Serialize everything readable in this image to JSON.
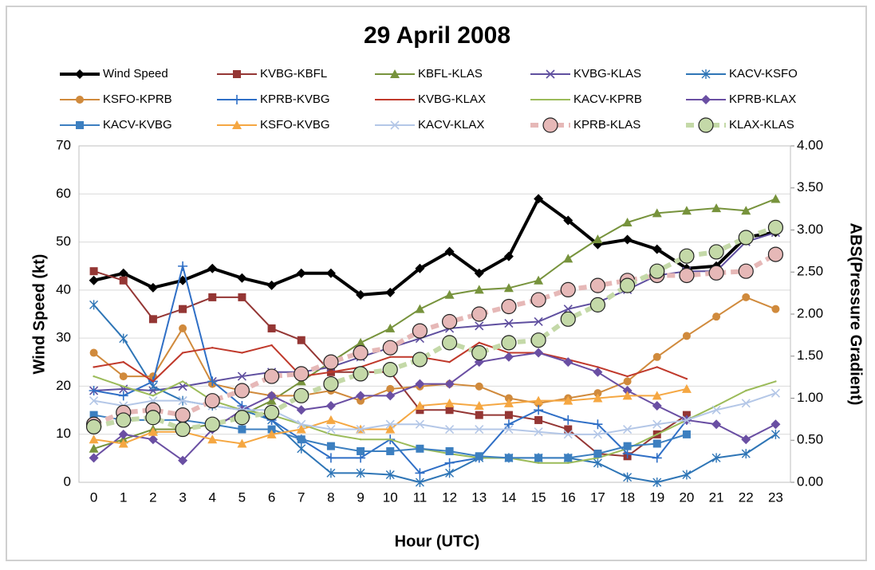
{
  "chart_data": {
    "type": "line",
    "title": "29 April 2008",
    "x_label": "Hour (UTC)",
    "y_label": "Wind Speed (kt)",
    "y2_label": "ABS(Pressure Gradient)",
    "categories": [
      "0",
      "1",
      "2",
      "3",
      "4",
      "5",
      "6",
      "7",
      "8",
      "9",
      "10",
      "11",
      "12",
      "13",
      "14",
      "15",
      "16",
      "17",
      "18",
      "19",
      "20",
      "21",
      "22",
      "23"
    ],
    "ylim": [
      0,
      70
    ],
    "yticks": [
      0,
      10,
      20,
      30,
      40,
      50,
      60,
      70
    ],
    "y2lim": [
      0,
      4
    ],
    "y2ticks": [
      {
        "value": 0,
        "label": "0.00"
      },
      {
        "value": 0.5,
        "label": "0.50"
      },
      {
        "value": 1,
        "label": "1.00"
      },
      {
        "value": 1.5,
        "label": "1.50"
      },
      {
        "value": 2,
        "label": "2.00"
      },
      {
        "value": 2.5,
        "label": "2.50"
      },
      {
        "value": 3,
        "label": "3.00"
      },
      {
        "value": 3.5,
        "label": "3.50"
      },
      {
        "value": 4,
        "label": "4.00"
      }
    ],
    "grid": true,
    "series": [
      {
        "name": "Wind Speed",
        "color": "#000000",
        "marker": "diamond",
        "width": 4,
        "axis": "y",
        "values": [
          42,
          43.5,
          40.5,
          42,
          44.5,
          42.5,
          41,
          43.5,
          43.5,
          39,
          39.5,
          44.5,
          48,
          43.5,
          47,
          59,
          54.5,
          49.5,
          50.5,
          48.5,
          44.5,
          45,
          51,
          52
        ]
      },
      {
        "name": "KVBG-KBFL",
        "color": "#943634",
        "marker": "square",
        "width": 2,
        "axis": "y2",
        "values": [
          2.51,
          2.4,
          1.94,
          2.06,
          2.2,
          2.2,
          1.83,
          1.69,
          1.31,
          1.31,
          1.31,
          0.86,
          0.86,
          0.8,
          0.8,
          0.74,
          0.63,
          0.34,
          0.31,
          0.57,
          0.8,
          null,
          null,
          null
        ]
      },
      {
        "name": "KBFL-KLAS",
        "color": "#77933c",
        "marker": "triangle",
        "width": 2,
        "axis": "y2",
        "values": [
          0.4,
          0.51,
          0.63,
          0.63,
          0.69,
          0.8,
          0.97,
          1.2,
          1.43,
          1.66,
          1.83,
          2.06,
          2.23,
          2.29,
          2.31,
          2.4,
          2.66,
          2.89,
          3.09,
          3.2,
          3.23,
          3.26,
          3.23,
          3.37
        ]
      },
      {
        "name": "KVBG-KLAS",
        "color": "#5f4f9f",
        "marker": "x",
        "width": 2,
        "axis": "y2",
        "values": [
          1.09,
          1.11,
          1.09,
          1.14,
          1.2,
          1.26,
          1.31,
          1.31,
          1.37,
          1.49,
          1.6,
          1.71,
          1.83,
          1.86,
          1.89,
          1.91,
          2.06,
          2.14,
          2.29,
          2.46,
          2.51,
          2.51,
          2.86,
          2.97
        ]
      },
      {
        "name": "KACV-KSFO",
        "color": "#2e75b6",
        "marker": "asterisk",
        "width": 2,
        "axis": "y2",
        "values": [
          2.11,
          1.71,
          1.14,
          0.97,
          0.91,
          0.86,
          0.74,
          0.4,
          0.11,
          0.11,
          0.09,
          0.0,
          0.11,
          0.29,
          0.29,
          0.29,
          0.29,
          0.23,
          0.06,
          0.0,
          0.09,
          0.29,
          0.34,
          0.57
        ]
      },
      {
        "name": "KSFO-KPRB",
        "color": "#d08a3c",
        "marker": "circle",
        "width": 2,
        "axis": "y2",
        "values": [
          1.54,
          1.26,
          1.26,
          1.83,
          1.17,
          1.09,
          1.03,
          1.03,
          1.09,
          0.97,
          1.11,
          1.14,
          1.17,
          1.14,
          1.0,
          0.94,
          1.0,
          1.06,
          1.2,
          1.49,
          1.74,
          1.97,
          2.2,
          2.06
        ]
      },
      {
        "name": "KPRB-KVBG",
        "color": "#2f6fc6",
        "marker": "plus",
        "width": 2,
        "axis": "y2",
        "values": [
          1.09,
          1.03,
          1.2,
          2.57,
          1.2,
          0.91,
          0.74,
          0.51,
          0.29,
          0.29,
          0.51,
          0.11,
          0.23,
          0.29,
          0.69,
          0.86,
          0.74,
          0.69,
          0.34,
          0.29,
          0.74,
          null,
          null,
          null
        ]
      },
      {
        "name": "KVBG-KLAX",
        "color": "#c0392b",
        "marker": "none",
        "width": 2,
        "axis": "y2",
        "values": [
          1.37,
          1.43,
          1.2,
          1.54,
          1.6,
          1.54,
          1.63,
          1.26,
          1.31,
          1.37,
          1.49,
          1.49,
          1.43,
          1.66,
          1.54,
          1.54,
          1.46,
          1.37,
          1.26,
          1.37,
          1.23,
          null,
          null,
          null
        ]
      },
      {
        "name": "KACV-KPRB",
        "color": "#9bbb59",
        "marker": "none",
        "width": 2,
        "axis": "y2",
        "values": [
          1.26,
          1.14,
          1.03,
          1.2,
          0.97,
          0.86,
          0.8,
          0.69,
          0.57,
          0.51,
          0.51,
          0.4,
          0.34,
          0.29,
          0.29,
          0.23,
          0.23,
          0.29,
          0.4,
          0.57,
          0.74,
          0.91,
          1.09,
          1.2
        ]
      },
      {
        "name": "KPRB-KLAX",
        "color": "#6a4fa3",
        "marker": "diamond",
        "width": 2,
        "axis": "y2",
        "values": [
          0.29,
          0.57,
          0.51,
          0.26,
          0.63,
          0.86,
          1.03,
          0.86,
          0.91,
          1.03,
          1.03,
          1.17,
          1.17,
          1.43,
          1.49,
          1.54,
          1.43,
          1.31,
          1.09,
          0.91,
          0.74,
          0.69,
          0.51,
          0.69
        ]
      },
      {
        "name": "KACV-KVBG",
        "color": "#3c7fc0",
        "marker": "square",
        "width": 2,
        "axis": "y2",
        "values": [
          0.8,
          0.74,
          0.74,
          0.74,
          0.69,
          0.63,
          0.63,
          0.51,
          0.43,
          0.37,
          0.37,
          0.4,
          0.37,
          0.31,
          0.29,
          0.29,
          0.29,
          0.34,
          0.43,
          0.46,
          0.57,
          null,
          null,
          null
        ]
      },
      {
        "name": "KSFO-KVBG",
        "color": "#f5a742",
        "marker": "triangle",
        "width": 2,
        "axis": "y2",
        "values": [
          0.51,
          0.46,
          0.6,
          0.6,
          0.51,
          0.46,
          0.57,
          0.63,
          0.74,
          0.63,
          0.63,
          0.91,
          0.94,
          0.91,
          0.94,
          0.97,
          0.97,
          1.0,
          1.03,
          1.03,
          1.11,
          null,
          null,
          null
        ]
      },
      {
        "name": "KACV-KLAX",
        "color": "#b4c7e7",
        "marker": "x",
        "width": 2,
        "axis": "y2",
        "values": [
          0.97,
          0.91,
          0.97,
          0.97,
          0.91,
          0.86,
          0.86,
          0.69,
          0.63,
          0.63,
          0.69,
          0.69,
          0.63,
          0.63,
          0.63,
          0.6,
          0.57,
          0.57,
          0.63,
          0.69,
          0.74,
          0.86,
          0.94,
          1.06
        ]
      },
      {
        "name": "KPRB-KLAS",
        "color": "#e6b8b7",
        "marker": "circle-big",
        "width": 6,
        "dashed": true,
        "axis": "y2",
        "values": [
          0.69,
          0.83,
          0.86,
          0.8,
          0.97,
          1.09,
          1.26,
          1.29,
          1.43,
          1.54,
          1.6,
          1.8,
          1.91,
          2.0,
          2.09,
          2.17,
          2.29,
          2.34,
          2.4,
          2.46,
          2.46,
          2.49,
          2.51,
          2.71
        ]
      },
      {
        "name": "KLAX-KLAS",
        "color": "#c4d9a8",
        "marker": "circle-big",
        "width": 6,
        "dashed": true,
        "axis": "y2",
        "values": [
          0.66,
          0.74,
          0.77,
          0.63,
          0.69,
          0.77,
          0.83,
          1.03,
          1.17,
          1.29,
          1.34,
          1.46,
          1.66,
          1.54,
          1.66,
          1.69,
          1.94,
          2.11,
          2.34,
          2.51,
          2.69,
          2.74,
          2.91,
          3.03
        ]
      }
    ]
  }
}
